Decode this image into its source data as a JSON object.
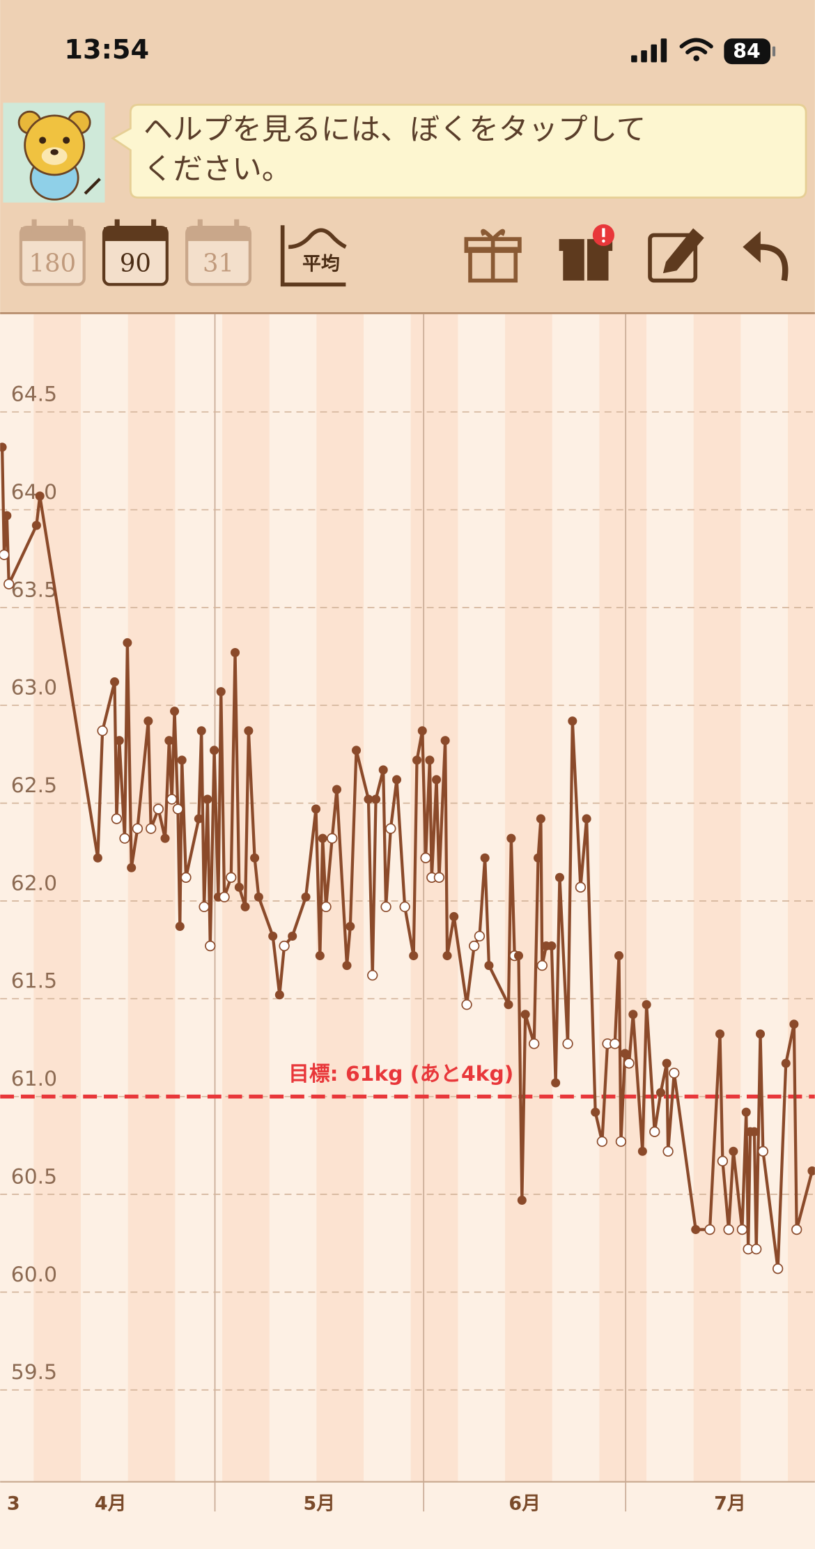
{
  "status_bar": {
    "time": "13:54",
    "battery": "84"
  },
  "help_bubble": {
    "lines": [
      "ヘルプを見るには、ぼくをタップして",
      "ください。"
    ]
  },
  "toolbar": {
    "periods": [
      "180",
      "90",
      "31"
    ],
    "average": "平均"
  },
  "chart_data": {
    "type": "line",
    "x": [
      -1.6,
      -1.3,
      -0.9,
      -0.6,
      3.5,
      4.0,
      12.6,
      13.3,
      15.1,
      15.4,
      15.8,
      16.6,
      17.0,
      17.6,
      18.5,
      20.1,
      20.5,
      21.6,
      22.6,
      23.2,
      23.6,
      24.0,
      24.5,
      24.8,
      25.1,
      25.7,
      27.6,
      28.0,
      28.4,
      28.9,
      29.3,
      29.9,
      30.5,
      30.9,
      31.4,
      32.4,
      33.0,
      33.6,
      34.5,
      35.0,
      35.9,
      36.5,
      38.6,
      39.6,
      40.3,
      41.5,
      43.5,
      45.0,
      45.6,
      46.0,
      46.5,
      47.4,
      48.1,
      49.6,
      50.1,
      51.0,
      52.8,
      53.4,
      53.9,
      55.0,
      55.4,
      56.1,
      57.0,
      58.2,
      59.5,
      60.0,
      60.8,
      61.3,
      61.9,
      62.2,
      62.9,
      63.3,
      64.2,
      64.5,
      65.5,
      67.4,
      68.5,
      69.3,
      70.1,
      70.7,
      73.6,
      74.0,
      74.5,
      75.1,
      75.6,
      76.1,
      77.4,
      78.0,
      78.4,
      78.6,
      79.2,
      80.0,
      80.6,
      81.2,
      82.4,
      83.1,
      84.3,
      85.2,
      86.5,
      87.5,
      88.3,
      89.4,
      90.0,
      90.3,
      90.9,
      91.5,
      92.1,
      93.5,
      94.1,
      95.3,
      96.2,
      97.1,
      97.3,
      98.2,
      101.4,
      103.5,
      105.0,
      105.4,
      106.3,
      107.0,
      108.3,
      108.9,
      109.2,
      109.5,
      110.1,
      110.4,
      111.0,
      111.4,
      113.6,
      114.8,
      116.0,
      116.4,
      118.7
    ],
    "series": [
      {
        "color": "#8b4a2a",
        "values": [
          64.32,
          63.77,
          63.97,
          63.62,
          63.92,
          64.07,
          62.22,
          62.87,
          63.12,
          62.42,
          62.82,
          62.32,
          63.32,
          62.17,
          62.37,
          62.92,
          62.37,
          62.47,
          62.32,
          62.82,
          62.52,
          62.97,
          62.47,
          61.87,
          62.72,
          62.12,
          62.42,
          62.87,
          61.97,
          62.52,
          61.77,
          62.77,
          62.02,
          63.07,
          62.02,
          62.12,
          63.27,
          62.07,
          61.97,
          62.87,
          62.22,
          62.02,
          61.82,
          61.52,
          61.77,
          61.82,
          62.02,
          62.47,
          61.72,
          62.32,
          61.97,
          62.32,
          62.57,
          61.67,
          61.87,
          62.77,
          62.52,
          61.62,
          62.52,
          62.67,
          61.97,
          62.37,
          62.62,
          61.97,
          61.72,
          62.72,
          62.87,
          62.22,
          62.72,
          62.12,
          62.62,
          62.12,
          62.82,
          61.72,
          61.92,
          61.47,
          61.77,
          61.82,
          62.22,
          61.67,
          61.47,
          62.32,
          61.72,
          61.72,
          60.47,
          61.42,
          61.27,
          62.22,
          62.42,
          61.67,
          61.77,
          61.77,
          61.07,
          62.12,
          61.27,
          62.92,
          62.07,
          62.42,
          60.92,
          60.77,
          61.27,
          61.27,
          61.72,
          60.77,
          61.22,
          61.17,
          61.42,
          60.72,
          61.47,
          60.82,
          61.02,
          61.17,
          60.72,
          61.12,
          60.32,
          60.32,
          61.32,
          60.67,
          60.32,
          60.72,
          60.32,
          60.92,
          60.22,
          60.82,
          60.82,
          60.22,
          61.32,
          60.72,
          60.12,
          61.17,
          61.37,
          60.32,
          60.62
        ],
        "hollow": [
          false,
          true,
          false,
          true,
          false,
          false,
          false,
          true,
          false,
          true,
          false,
          true,
          false,
          false,
          true,
          false,
          true,
          true,
          false,
          false,
          true,
          false,
          true,
          false,
          false,
          true,
          false,
          false,
          true,
          false,
          true,
          false,
          false,
          false,
          true,
          true,
          false,
          false,
          false,
          false,
          false,
          false,
          false,
          false,
          true,
          false,
          false,
          false,
          false,
          false,
          true,
          true,
          false,
          false,
          false,
          false,
          false,
          true,
          false,
          false,
          true,
          true,
          false,
          true,
          false,
          false,
          false,
          true,
          false,
          true,
          false,
          true,
          false,
          false,
          false,
          true,
          true,
          true,
          false,
          false,
          false,
          false,
          true,
          false,
          false,
          false,
          true,
          false,
          false,
          true,
          false,
          false,
          false,
          false,
          true,
          false,
          true,
          false,
          false,
          true,
          true,
          true,
          false,
          true,
          false,
          true,
          false,
          false,
          false,
          true,
          false,
          false,
          true,
          true,
          false,
          true,
          false,
          true,
          true,
          false,
          true,
          false,
          true,
          false,
          false,
          true,
          false,
          true,
          true,
          false,
          false,
          true,
          false
        ]
      }
    ],
    "xlim": [
      -1.9,
      119.1
    ],
    "xticks": [
      {
        "value": -0.9,
        "label": "3"
      },
      {
        "value": 14.5,
        "label": "4月"
      },
      {
        "value": 45.5,
        "label": "5月"
      },
      {
        "value": 76,
        "label": "6月"
      },
      {
        "value": 106.5,
        "label": "7月"
      }
    ],
    "xgrid": [
      30,
      61,
      91
    ],
    "ylim": [
      59,
      65
    ],
    "yticks": [
      59.5,
      {
        "value": 60,
        "label": "60.0"
      },
      60.5,
      {
        "value": 61,
        "label": "61.0"
      },
      61.5,
      {
        "value": 62,
        "label": "62.0"
      },
      62.5,
      {
        "value": 63,
        "label": "63.0"
      },
      63.5,
      {
        "value": 64,
        "label": "64.0"
      },
      64.5
    ],
    "grid": true,
    "goal": 61,
    "goal_label": "目標: 61kg (あと4kg)",
    "goal_color": "#e8373a"
  }
}
